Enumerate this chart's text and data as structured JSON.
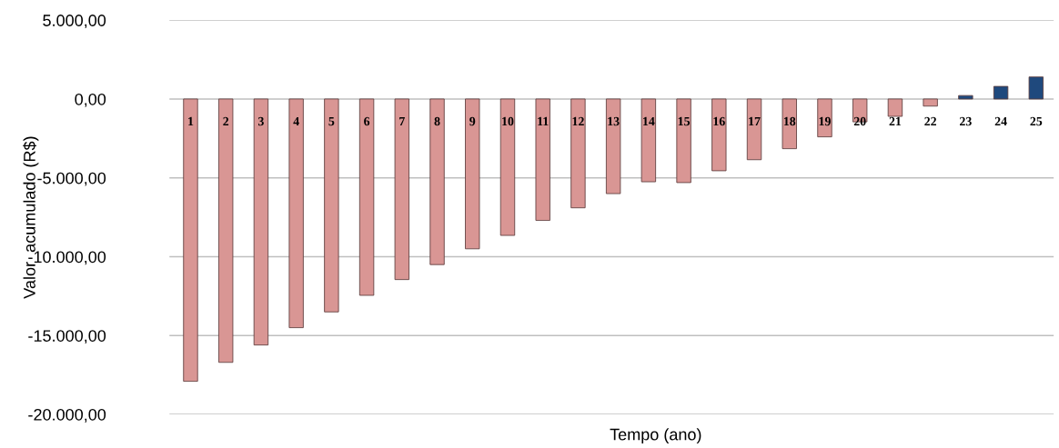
{
  "chart_data": {
    "type": "bar",
    "xlabel": "Tempo (ano)",
    "ylabel": "Valor  acumulado (R$)",
    "categories": [
      "1",
      "2",
      "3",
      "4",
      "5",
      "6",
      "7",
      "8",
      "9",
      "10",
      "11",
      "12",
      "13",
      "14",
      "15",
      "16",
      "17",
      "18",
      "19",
      "20",
      "21",
      "22",
      "23",
      "24",
      "25"
    ],
    "values": [
      -17900,
      -16700,
      -15600,
      -14500,
      -13500,
      -12450,
      -11450,
      -10500,
      -9500,
      -8650,
      -7700,
      -6900,
      -6000,
      -5250,
      -5300,
      -4550,
      -3850,
      -3150,
      -2400,
      -1450,
      -1100,
      -450,
      220,
      800,
      1400
    ],
    "colors": [
      "#d99694",
      "#d99694",
      "#d99694",
      "#d99694",
      "#d99694",
      "#d99694",
      "#d99694",
      "#d99694",
      "#d99694",
      "#d99694",
      "#d99694",
      "#d99694",
      "#d99694",
      "#d99694",
      "#d99694",
      "#d99694",
      "#d99694",
      "#d99694",
      "#d99694",
      "#d99694",
      "#d99694",
      "#d99694",
      "#1f497d",
      "#1f497d",
      "#1f497d"
    ],
    "ylim": [
      -20000,
      5000
    ],
    "yticks": [
      {
        "value": -20000,
        "label": "-20.000,00"
      },
      {
        "value": -15000,
        "label": "-15.000,00"
      },
      {
        "value": -10000,
        "label": "-10.000,00"
      },
      {
        "value": -5000,
        "label": "-5.000,00"
      },
      {
        "value": 0,
        "label": "0,00"
      },
      {
        "value": 5000,
        "label": "5.000,00"
      }
    ],
    "grid": "y"
  }
}
